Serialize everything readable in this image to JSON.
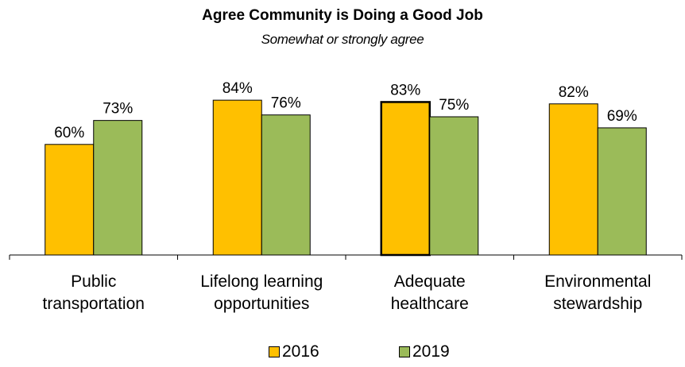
{
  "chart_data": {
    "type": "bar",
    "title": "Agree Community is Doing a Good Job",
    "subtitle": "Somewhat or strongly agree",
    "categories": [
      [
        "Public",
        "transportation"
      ],
      [
        "Lifelong learning",
        "opportunities"
      ],
      [
        "Adequate",
        "healthcare"
      ],
      [
        "Environmental",
        "stewardship"
      ]
    ],
    "series": [
      {
        "name": "2016",
        "color": "#FFC000",
        "values": [
          60,
          84,
          83,
          82
        ],
        "labels": [
          "60%",
          "84%",
          "83%",
          "82%"
        ]
      },
      {
        "name": "2019",
        "color": "#9BBB59",
        "values": [
          73,
          76,
          75,
          69
        ],
        "labels": [
          "73%",
          "76%",
          "75%",
          "69%"
        ]
      }
    ],
    "ylim": [
      0,
      100
    ],
    "grid": false,
    "legend_position": "bottom",
    "highlighted_bar": {
      "series": 0,
      "category": 2
    }
  }
}
